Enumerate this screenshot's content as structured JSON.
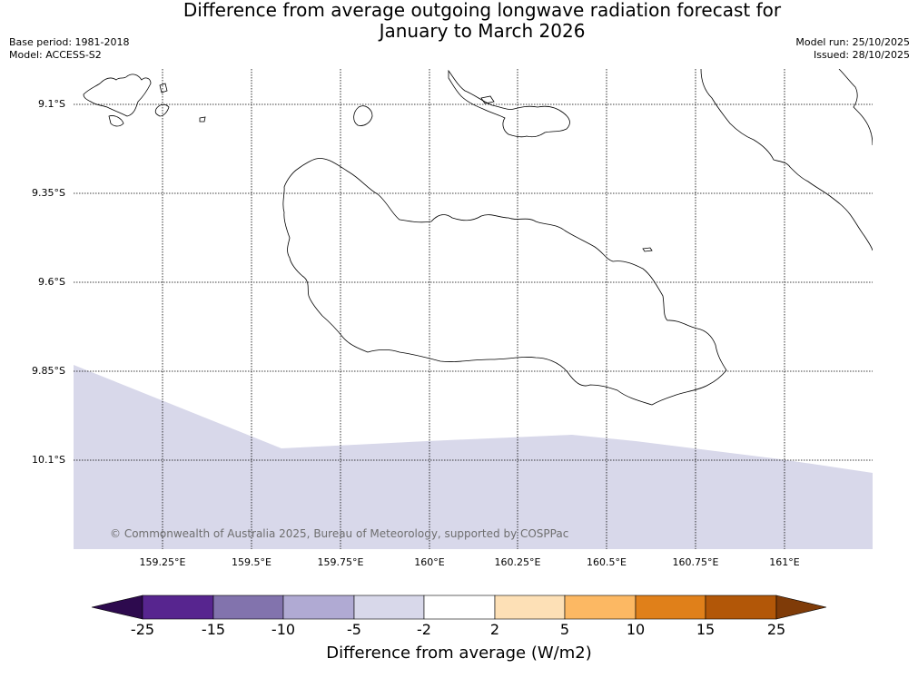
{
  "title": {
    "line1": "Difference from average outgoing longwave radiation forecast for",
    "line2": "January to March 2026"
  },
  "meta_left": {
    "base_period": "Base period: 1981-2018",
    "model": "Model: ACCESS-S2"
  },
  "meta_right": {
    "model_run": "Model run: 25/10/2025",
    "issued": "Issued: 28/10/2025"
  },
  "map": {
    "latitude_labels": [
      "9.1°S",
      "9.35°S",
      "9.6°S",
      "9.85°S",
      "10.1°S"
    ],
    "longitude_labels": [
      "159.25°E",
      "159.5°E",
      "159.75°E",
      "160°E",
      "160.25°E",
      "160.5°E",
      "160.75°E",
      "161°E"
    ],
    "shaded_category": "-5 to -2",
    "shaded_color": "#d8d8ea",
    "coastline_color": "#000000",
    "copyright": "© Commonwealth of Australia 2025, Bureau of Meteorology, supported by COSPPac"
  },
  "colorbar": {
    "title": "Difference from average (W/m2)",
    "tick_labels": [
      "-25",
      "-15",
      "-10",
      "-5",
      "-2",
      "2",
      "5",
      "10",
      "15",
      "25"
    ],
    "colors": [
      "#2d0a4e",
      "#57258f",
      "#8273ad",
      "#b0aad3",
      "#d8d8ea",
      "#ffffff",
      "#fde0b6",
      "#fcb863",
      "#e0801a",
      "#b25708",
      "#7f3b08"
    ]
  }
}
